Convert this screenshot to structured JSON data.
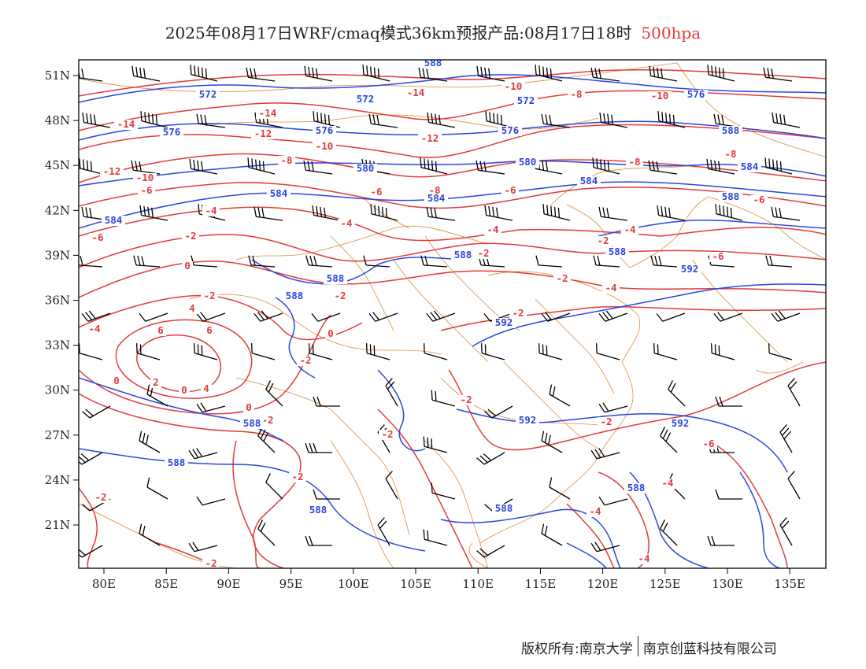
{
  "header": {
    "title": "2025年08月17日WRF/cmaq模式36km预报产品:08月17日18时",
    "level": "500hpa",
    "level_color": "#e23a3a"
  },
  "colors": {
    "temperature_contour": "#e23a3a",
    "height_contour": "#2a46e0",
    "coastline_border": "#d98c3a",
    "wind_barb": "#000000",
    "frame": "#000000"
  },
  "map": {
    "type": "weather-map",
    "lon_range": [
      78,
      138
    ],
    "lat_range": [
      18,
      52
    ],
    "x_tick_labels": [
      "80E",
      "85E",
      "90E",
      "95E",
      "100E",
      "105E",
      "110E",
      "115E",
      "120E",
      "125E",
      "130E",
      "135E"
    ],
    "y_tick_labels": [
      "51N",
      "48N",
      "45N",
      "42N",
      "39N",
      "36N",
      "33N",
      "30N",
      "27N",
      "24N",
      "21N"
    ],
    "temperature_labels": [
      "-14",
      "-12",
      "-10",
      "-8",
      "-6",
      "-4",
      "-2",
      "0",
      "2",
      "4",
      "6"
    ],
    "height_labels": [
      "572",
      "576",
      "580",
      "584",
      "588",
      "592"
    ],
    "layers": [
      "temperature-contours",
      "height-contours",
      "coastline-borders",
      "wind-barbs"
    ]
  },
  "footer": {
    "copyright_left": "版权所有:南京大学",
    "copyright_right": "南京创蓝科技有限公司"
  }
}
